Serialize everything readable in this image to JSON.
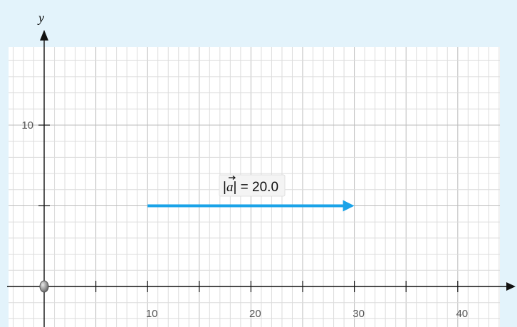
{
  "axes": {
    "x_name": "",
    "y_name": "y",
    "x_ticks": [
      {
        "value": 10,
        "label": "10"
      },
      {
        "value": 20,
        "label": "20"
      },
      {
        "value": 30,
        "label": "30"
      },
      {
        "value": 40,
        "label": "40"
      }
    ],
    "y_ticks": [
      {
        "value": 10,
        "label": "10"
      }
    ],
    "unlabeled_x_ticks": [
      5,
      15,
      25,
      35
    ],
    "unlabeled_y_ticks": [
      5
    ]
  },
  "vector": {
    "name": "a",
    "start": [
      10,
      5
    ],
    "end": [
      30,
      5
    ],
    "magnitude_label_prefix": "|",
    "magnitude_label_symbol": "a",
    "magnitude_label_suffix": "| = 20.0",
    "color": "#1aa3e8"
  },
  "origin_point": {
    "x": 0,
    "y": 0,
    "icon": "draggable-point-icon"
  },
  "colors": {
    "background": "#e3f3fb",
    "grid_minor": "#dcdcdc",
    "grid_major": "#bbbbbb",
    "axis": "#111111",
    "vector": "#1aa3e8"
  }
}
